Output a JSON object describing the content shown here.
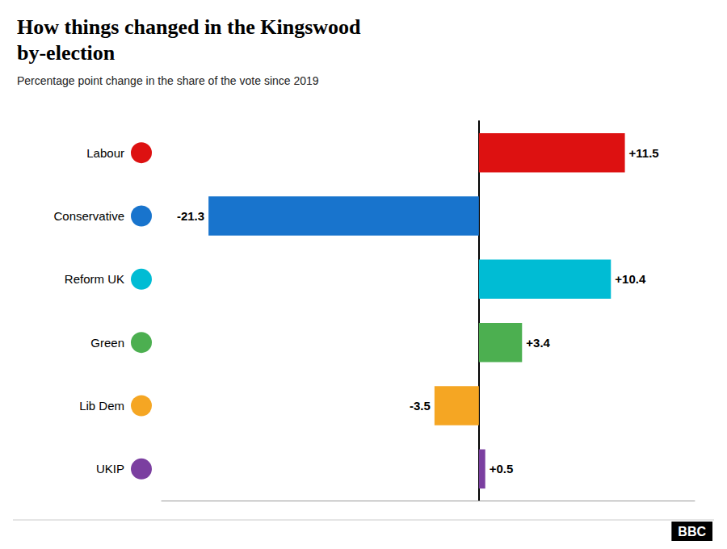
{
  "chart_data": {
    "type": "bar",
    "orientation": "horizontal",
    "title": "How things changed in the Kingswood\nby-election",
    "subtitle": "Percentage point change in the share of the vote since 2019",
    "categories": [
      "Labour",
      "Conservative",
      "Reform UK",
      "Green",
      "Lib Dem",
      "UKIP"
    ],
    "values": [
      11.5,
      -21.3,
      10.4,
      3.4,
      -3.5,
      0.5
    ],
    "value_labels": [
      "+11.5",
      "-21.3",
      "+10.4",
      "+3.4",
      "-3.5",
      "+0.5"
    ],
    "colors": [
      "#dd1111",
      "#1874cd",
      "#00bcd4",
      "#4caf50",
      "#f5a623",
      "#7b3fa0"
    ],
    "xlim": [
      -25,
      17
    ],
    "data_labels": true,
    "tick_labels": "y",
    "grid": false,
    "annotations": [
      "BBC"
    ]
  }
}
